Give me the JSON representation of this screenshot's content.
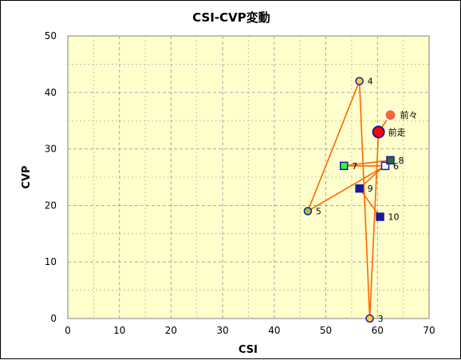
{
  "chart_data": {
    "type": "scatter",
    "title": "CSI-CVP変動",
    "xlabel": "CSI",
    "ylabel": "CVP",
    "xlim": [
      0,
      70
    ],
    "ylim": [
      0,
      50
    ],
    "xticks": [
      0,
      10,
      20,
      30,
      40,
      50,
      60,
      70
    ],
    "yticks": [
      0,
      10,
      20,
      30,
      40,
      50
    ],
    "grid": true,
    "colors": {
      "plot_background": "#ffffcc",
      "line": "#ff6600",
      "grid": "#a0a0a0"
    },
    "points": [
      {
        "label": "前々",
        "x": 62.5,
        "y": 36,
        "shape": "circle",
        "size": "large",
        "fill": "#ff6633",
        "stroke": "#ffffff"
      },
      {
        "label": "前走",
        "x": 60.2,
        "y": 33,
        "shape": "circle",
        "size": "large",
        "fill": "#ff0000",
        "stroke": "#1a1aa6"
      },
      {
        "label": "3",
        "x": 58.5,
        "y": 0,
        "shape": "circle",
        "size": "small",
        "fill": "#ffcc33",
        "stroke": "#1a1aa6"
      },
      {
        "label": "4",
        "x": 56.5,
        "y": 42,
        "shape": "circle",
        "size": "small",
        "fill": "#ffcc33",
        "stroke": "#1a1aa6"
      },
      {
        "label": "5",
        "x": 46.5,
        "y": 19,
        "shape": "circle",
        "size": "small",
        "fill": "#99cc33",
        "stroke": "#1a1aa6"
      },
      {
        "label": "6",
        "x": 61.5,
        "y": 27,
        "shape": "square",
        "size": "small",
        "fill": "#ffffff",
        "stroke": "#1a1aa6"
      },
      {
        "label": "7",
        "x": 53.5,
        "y": 27,
        "shape": "square",
        "size": "small",
        "fill": "#33ff33",
        "stroke": "#1a1aa6"
      },
      {
        "label": "8",
        "x": 62.5,
        "y": 28,
        "shape": "square",
        "size": "small",
        "fill": "#336633",
        "stroke": "#1a1aa6"
      },
      {
        "label": "9",
        "x": 56.5,
        "y": 23,
        "shape": "square",
        "size": "small",
        "fill": "#1a1a99",
        "stroke": "#1a1aa6"
      },
      {
        "label": "10",
        "x": 60.5,
        "y": 18,
        "shape": "square",
        "size": "small",
        "fill": "#1a1a99",
        "stroke": "#1a1aa6"
      }
    ],
    "path_order": [
      "前々",
      "前走",
      "3",
      "4",
      "5",
      "6",
      "7",
      "8",
      "9",
      "10"
    ]
  }
}
